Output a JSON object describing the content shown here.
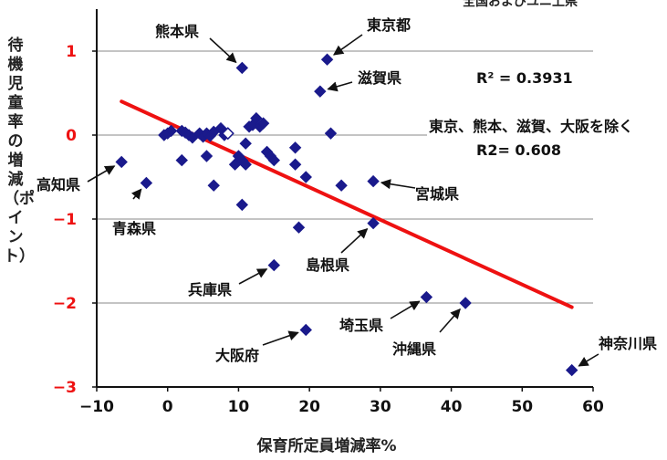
{
  "chart_data": {
    "type": "scatter",
    "title": "",
    "top_note": "全国およびユニ上県",
    "xlabel": "保育所定員増減率%",
    "ylabel": "待機児童率の増減（ポイント）",
    "xlim": [
      -10,
      60
    ],
    "ylim": [
      -3,
      1.5
    ],
    "xticks": [
      "−10",
      "0",
      "10",
      "20",
      "30",
      "40",
      "50",
      "60"
    ],
    "yticks": [
      "−3",
      "−2",
      "−1",
      "0",
      "1"
    ],
    "xtick_values": [
      -10,
      0,
      10,
      20,
      30,
      40,
      50,
      60
    ],
    "ytick_values": [
      -3,
      -2,
      -1,
      0,
      1
    ],
    "grid": "horizontal",
    "marker_color": "#1a1a8c",
    "trend_color": "#ee1111",
    "series": [
      {
        "points": [
          [
            -6.5,
            -0.32
          ],
          [
            -3,
            -0.57
          ],
          [
            -0.5,
            0.0
          ],
          [
            0,
            0.02
          ],
          [
            0.5,
            0.05
          ],
          [
            2,
            0.05
          ],
          [
            2.5,
            0.03
          ],
          [
            3,
            0.0
          ],
          [
            3.5,
            -0.03
          ],
          [
            4.5,
            0.02
          ],
          [
            5,
            -0.02
          ],
          [
            5.5,
            0.02
          ],
          [
            6,
            -0.01
          ],
          [
            6.5,
            0.04
          ],
          [
            7.5,
            0.08
          ],
          [
            8,
            0.0
          ],
          [
            2,
            -0.3
          ],
          [
            5.5,
            -0.25
          ],
          [
            6.5,
            -0.6
          ],
          [
            9.5,
            -0.35
          ],
          [
            10,
            -0.25
          ],
          [
            10.5,
            -0.3
          ],
          [
            11,
            -0.35
          ],
          [
            11,
            -0.1
          ],
          [
            11.5,
            0.1
          ],
          [
            12,
            0.12
          ],
          [
            12.5,
            0.2
          ],
          [
            13,
            0.1
          ],
          [
            13.5,
            0.14
          ],
          [
            14,
            -0.2
          ],
          [
            14.5,
            -0.25
          ],
          [
            15,
            -0.3
          ],
          [
            18,
            -0.15
          ],
          [
            18,
            -0.35
          ],
          [
            19.5,
            -0.5
          ],
          [
            10.5,
            -0.83
          ],
          [
            24.5,
            -0.6
          ],
          [
            29,
            -0.55
          ],
          [
            10.5,
            0.8
          ],
          [
            22.5,
            0.9
          ],
          [
            21.5,
            0.52
          ],
          [
            23,
            0.02
          ],
          [
            18.5,
            -1.1
          ],
          [
            29,
            -1.05
          ],
          [
            15,
            -1.55
          ],
          [
            36.5,
            -1.93
          ],
          [
            42,
            -2.0
          ],
          [
            19.5,
            -2.32
          ],
          [
            57,
            -2.8
          ]
        ],
        "hollow_point": [
          8.5,
          0.02
        ]
      }
    ],
    "trendline": {
      "x": [
        -6.5,
        57
      ],
      "y": [
        0.4,
        -2.05
      ]
    },
    "annotations": [
      {
        "label": "熊本県",
        "point": [
          10.5,
          0.8
        ]
      },
      {
        "label": "東京都",
        "point": [
          22.5,
          0.9
        ]
      },
      {
        "label": "滋賀県",
        "point": [
          21.5,
          0.52
        ]
      },
      {
        "label": "高知県",
        "point": [
          -6.5,
          -0.32
        ]
      },
      {
        "label": "青森県",
        "point": [
          -3,
          -0.57
        ]
      },
      {
        "label": "宮城県",
        "point": [
          29,
          -0.55
        ]
      },
      {
        "label": "島根県",
        "point": [
          29,
          -1.05
        ]
      },
      {
        "label": "兵庫県",
        "point": [
          15,
          -1.55
        ]
      },
      {
        "label": "埼玉県",
        "point": [
          36.5,
          -1.93
        ]
      },
      {
        "label": "沖縄県",
        "point": [
          42,
          -2.0
        ]
      },
      {
        "label": "大阪府",
        "point": [
          19.5,
          -2.32
        ]
      },
      {
        "label": "神奈川県",
        "point": [
          57,
          -2.8
        ]
      }
    ],
    "stats": {
      "r2_all": "R² = 0.3931",
      "excl_note": "東京、熊本、滋賀、大阪を除く",
      "r2_excl": "R2= 0.608"
    }
  }
}
